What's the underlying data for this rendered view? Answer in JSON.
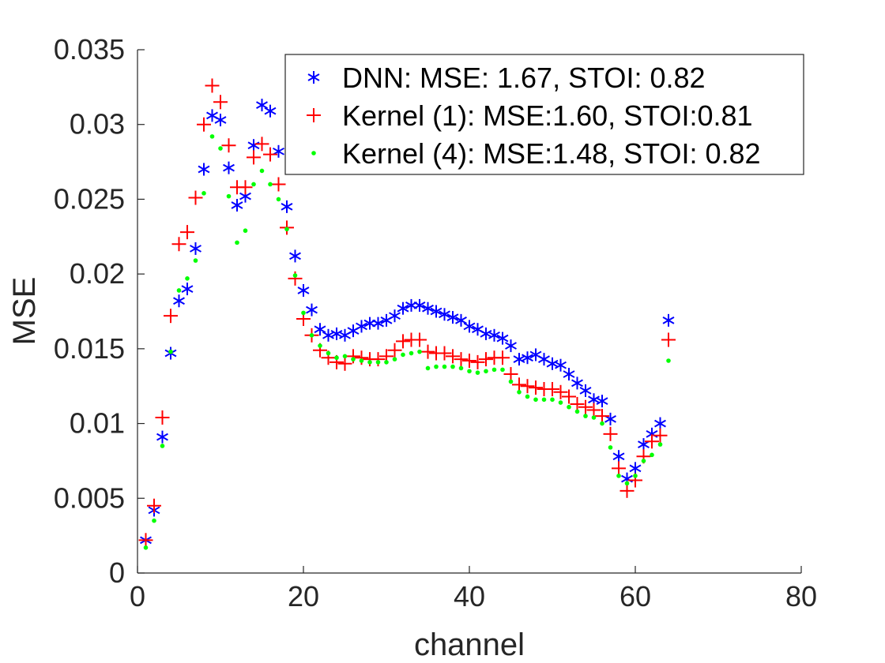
{
  "chart_data": {
    "type": "scatter",
    "title": "",
    "xlabel": "channel",
    "ylabel": "MSE",
    "xlim": [
      0,
      80
    ],
    "ylim": [
      0,
      0.035
    ],
    "xticks": [
      0,
      20,
      40,
      60,
      80
    ],
    "xtick_labels": [
      "0",
      "20",
      "40",
      "60",
      "80"
    ],
    "yticks": [
      0,
      0.005,
      0.01,
      0.015,
      0.02,
      0.025,
      0.03,
      0.035
    ],
    "ytick_labels": [
      "0",
      "0.005",
      "0.01",
      "0.015",
      "0.02",
      "0.025",
      "0.03",
      "0.035"
    ],
    "grid": false,
    "legend_position": "top-right",
    "x": [
      1,
      2,
      3,
      4,
      5,
      6,
      7,
      8,
      9,
      10,
      11,
      12,
      13,
      14,
      15,
      16,
      17,
      18,
      19,
      20,
      21,
      22,
      23,
      24,
      25,
      26,
      27,
      28,
      29,
      30,
      31,
      32,
      33,
      34,
      35,
      36,
      37,
      38,
      39,
      40,
      41,
      42,
      43,
      44,
      45,
      46,
      47,
      48,
      49,
      50,
      51,
      52,
      53,
      54,
      55,
      56,
      57,
      58,
      59,
      60,
      61,
      62,
      63,
      64
    ],
    "series": [
      {
        "name": "DNN: MSE: 1.67, STOI: 0.82",
        "marker": "asterisk",
        "color": "#0000ff",
        "values": [
          0.0022,
          0.0042,
          0.0091,
          0.0147,
          0.0182,
          0.019,
          0.0217,
          0.027,
          0.0306,
          0.0303,
          0.0271,
          0.0246,
          0.0252,
          0.0286,
          0.0313,
          0.0309,
          0.0282,
          0.0245,
          0.0212,
          0.0189,
          0.0176,
          0.0163,
          0.0159,
          0.016,
          0.0159,
          0.0162,
          0.0165,
          0.0167,
          0.0167,
          0.0169,
          0.0172,
          0.0177,
          0.0179,
          0.0179,
          0.0177,
          0.0175,
          0.0173,
          0.0171,
          0.0169,
          0.0165,
          0.0163,
          0.016,
          0.0159,
          0.0157,
          0.0152,
          0.0143,
          0.0144,
          0.0146,
          0.0143,
          0.014,
          0.0139,
          0.0133,
          0.0127,
          0.0122,
          0.0116,
          0.0115,
          0.0103,
          0.0078,
          0.0063,
          0.007,
          0.0086,
          0.0093,
          0.01,
          0.0169
        ]
      },
      {
        "name": "Kernel (1): MSE:1.60, STOI:0.81",
        "marker": "plus",
        "color": "#ff0000",
        "values": [
          0.0022,
          0.0045,
          0.0104,
          0.0172,
          0.022,
          0.0228,
          0.0251,
          0.03,
          0.0326,
          0.0315,
          0.0286,
          0.0258,
          0.0258,
          0.0278,
          0.0287,
          0.028,
          0.026,
          0.0231,
          0.0197,
          0.017,
          0.0159,
          0.0149,
          0.0144,
          0.0141,
          0.014,
          0.0145,
          0.0144,
          0.0143,
          0.0143,
          0.0145,
          0.0149,
          0.0155,
          0.0156,
          0.0156,
          0.0148,
          0.0147,
          0.0147,
          0.0145,
          0.0143,
          0.0142,
          0.0141,
          0.0143,
          0.0144,
          0.0144,
          0.0133,
          0.0126,
          0.0125,
          0.0124,
          0.0123,
          0.0123,
          0.0121,
          0.0118,
          0.0113,
          0.0111,
          0.0109,
          0.0105,
          0.0093,
          0.007,
          0.0055,
          0.0062,
          0.0078,
          0.0088,
          0.0092,
          0.0156
        ]
      },
      {
        "name": "Kernel (4): MSE:1.48, STOI: 0.82",
        "marker": "dot",
        "color": "#00ff00",
        "values": [
          0.0017,
          0.0035,
          0.0085,
          0.0148,
          0.0189,
          0.0197,
          0.0209,
          0.0254,
          0.0292,
          0.0284,
          0.0252,
          0.0221,
          0.0229,
          0.026,
          0.0269,
          0.026,
          0.025,
          0.023,
          0.0199,
          0.0174,
          0.0159,
          0.0152,
          0.0147,
          0.0144,
          0.0145,
          0.0143,
          0.0142,
          0.0141,
          0.0141,
          0.0141,
          0.0143,
          0.0146,
          0.0147,
          0.0148,
          0.0137,
          0.0138,
          0.0138,
          0.0138,
          0.0137,
          0.0135,
          0.0134,
          0.0135,
          0.0136,
          0.0136,
          0.0128,
          0.0121,
          0.0118,
          0.0116,
          0.0116,
          0.0116,
          0.0114,
          0.0111,
          0.0108,
          0.0105,
          0.0104,
          0.01,
          0.0084,
          0.0065,
          0.006,
          0.0065,
          0.0075,
          0.0079,
          0.0086,
          0.0142
        ]
      }
    ]
  }
}
